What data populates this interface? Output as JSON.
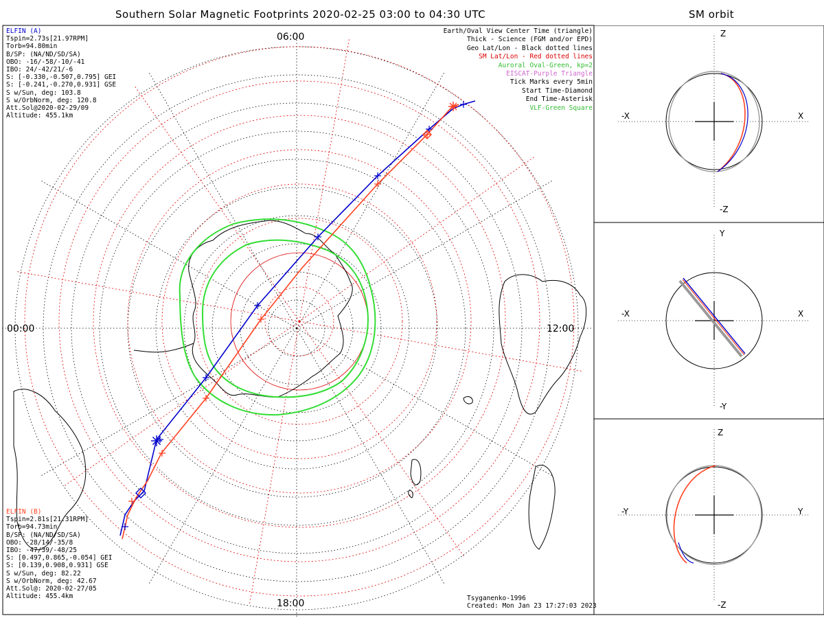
{
  "title": "Southern Solar Magnetic Footprints 2020-02-25 03:00 to 04:30 UTC",
  "orbit_title": "SM orbit",
  "time_labels": {
    "top": "06:00",
    "left": "00:00",
    "right": "12:00",
    "bottom": "18:00"
  },
  "colors": {
    "elfin_a": "#0000cc",
    "elfin_b": "#ff4020",
    "oval": "#33dd33",
    "grid_red": "#dd0000",
    "eiscat": "#cc66cc",
    "orbit_grey": "#999999"
  },
  "elfin_a": {
    "name": "ELFIN (A)",
    "lines": [
      "Tspin=2.73s[21.97RPM]",
      "Torb=94.80min",
      "B/SP: (NA/ND/SD/SA)",
      "OBO: -16/-58/-10/-41",
      "IBO: 24/-42/21/-6",
      "S: [-0.330,-0.507,0.795] GEI",
      "S: [-0.241,-0.270,0.931] GSE",
      "S w/Sun, deg: 103.8",
      "S w/OrbNorm, deg: 120.8",
      "Att.Sol@2020-02-29/09",
      "Altitude: 455.1km"
    ]
  },
  "elfin_b": {
    "name": "ELFIN (B)",
    "lines": [
      "Tspin=2.81s[21.31RPM]",
      "Torb=94.73min",
      "B/SP: (NA/ND/SD/SA)",
      "OBO: -28/14/-35/8",
      "IBO: -47/39/-48/25",
      "S: [0.497,0.865,-0.054] GEI",
      "S: [0.139,0.908,0.931] GSE",
      "S w/Sun, deg: 82.22",
      "S w/OrbNorm, deg: 42.67",
      "Att.Sol@: 2020-02-27/05",
      "Altitude: 455.4km"
    ]
  },
  "legend": [
    {
      "text": "Earth/Oval View Center Time (triangle)",
      "color": "#000000"
    },
    {
      "text": "Thick - Science (FGM and/or EPD)",
      "color": "#000000"
    },
    {
      "text": "Geo Lat/Lon - Black dotted lines",
      "color": "#000000"
    },
    {
      "text": "SM Lat/Lon - Red dotted lines",
      "color": "#dd0000"
    },
    {
      "text": "Auroral Oval-Green, kp=2",
      "color": "#33bb33"
    },
    {
      "text": "EISCAT-Purple Triangle",
      "color": "#cc66cc"
    },
    {
      "text": "Tick Marks every 5min",
      "color": "#000000"
    },
    {
      "text": "Start Time-Diamond",
      "color": "#000000"
    },
    {
      "text": "End Time-Asterisk",
      "color": "#000000"
    },
    {
      "text": "VLF-Green Square",
      "color": "#33bb33"
    }
  ],
  "footer": {
    "model": "Tsyganenko-1996",
    "created": "Created: Mon Jan 23 17:27:03 2023"
  },
  "orbit_panels": [
    {
      "up": "Z",
      "down": "-Z",
      "left": "-X",
      "right": "X"
    },
    {
      "up": "Y",
      "down": "-Y",
      "left": "-X",
      "right": "X"
    },
    {
      "up": "Z",
      "down": "-Z",
      "left": "-Y",
      "right": "Y"
    }
  ]
}
